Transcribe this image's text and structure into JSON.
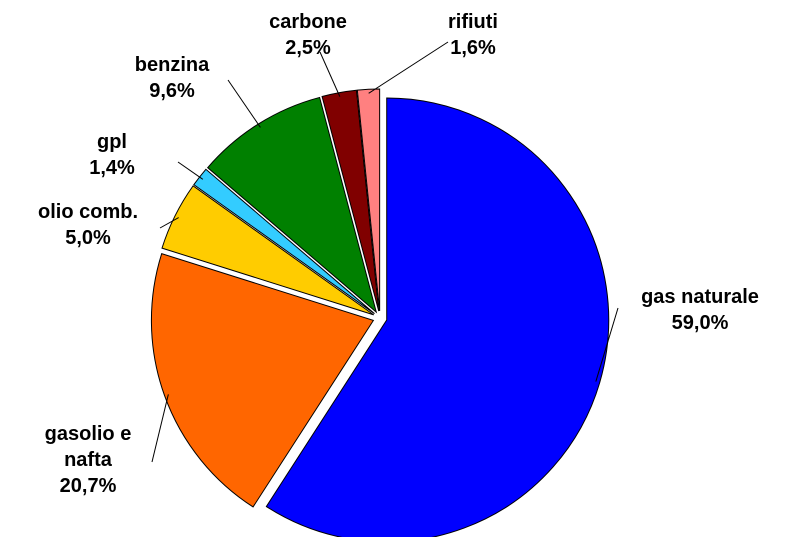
{
  "chart_data": {
    "type": "pie",
    "categories": [
      "gas naturale",
      "gasolio e nafta",
      "olio comb.",
      "gpl",
      "benzina",
      "carbone",
      "rifiuti"
    ],
    "values": [
      59.0,
      20.7,
      5.0,
      1.4,
      9.6,
      2.5,
      1.6
    ],
    "value_labels": [
      "59,0%",
      "20,7%",
      "5,0%",
      "1,4%",
      "9,6%",
      "2,5%",
      "1,6%"
    ],
    "colors": [
      "#0000ff",
      "#ff6600",
      "#ffcc00",
      "#33ccff",
      "#008000",
      "#800000",
      "#ff8080"
    ]
  }
}
